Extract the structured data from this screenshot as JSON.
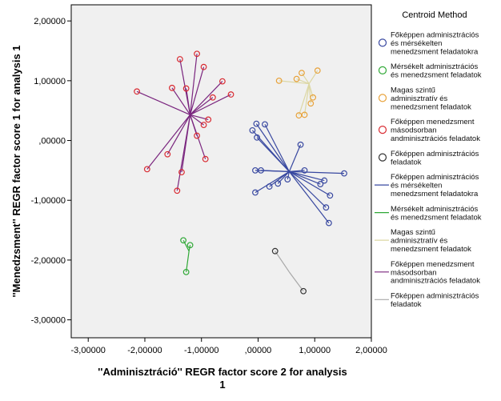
{
  "chart_data": {
    "type": "scatter",
    "title": "",
    "xlabel": "''Adminisztráció'' REGR factor score   2 for analysis 1",
    "xlabel_lines": [
      "''Adminisztráció'' REGR factor score   2 for analysis",
      "1"
    ],
    "ylabel": "''Menedzsment'' REGR factor score   1 for analysis 1",
    "xlim": [
      -3.3,
      2.0
    ],
    "ylim": [
      -3.3,
      2.27
    ],
    "x_ticks": [
      -3,
      -2,
      -1,
      0,
      1,
      2
    ],
    "x_tick_labels": [
      "-3,00000",
      "-2,00000",
      "-1,00000",
      ",00000",
      "1,00000",
      "2,00000"
    ],
    "y_ticks": [
      -3,
      -2,
      -1,
      0,
      1,
      2
    ],
    "y_tick_labels": [
      "-3,00000",
      "-2,00000",
      "-1,00000",
      ",00000",
      "1,00000",
      "2,00000"
    ],
    "legend": {
      "title": "Centroid Method",
      "position": "right",
      "items": [
        {
          "kind": "marker",
          "color": "#3848a0",
          "lines": [
            "Főképpen adminisztrációs",
            "és mérsékelten",
            "menedzsment feladatokra"
          ]
        },
        {
          "kind": "marker",
          "color": "#2fa836",
          "lines": [
            "Mérsékelt adminisztrációs",
            "és menedzsment feladatok"
          ]
        },
        {
          "kind": "marker",
          "color": "#e8a23a",
          "lines": [
            "Magas szintű",
            "adminisztratív és",
            "menedzsment feladatok"
          ]
        },
        {
          "kind": "marker",
          "color": "#d92b32",
          "lines": [
            "Főképpen menedzsment",
            "másodsorban",
            "andminisztrációs feladatok"
          ]
        },
        {
          "kind": "marker",
          "color": "#333333",
          "lines": [
            "Főképpen adminisztrációs",
            "feladatok"
          ]
        },
        {
          "kind": "line",
          "color": "#3848a0",
          "lines": [
            "Főképpen adminisztrációs",
            "és mérsékelten",
            "menedzsment feladatokra"
          ]
        },
        {
          "kind": "line",
          "color": "#2fa836",
          "lines": [
            "Mérsékelt adminisztrációs",
            "és menedzsment feladatok"
          ]
        },
        {
          "kind": "line",
          "color": "#dcd7a3",
          "lines": [
            "Magas szintű",
            "adminisztratív és",
            "menedzsment feladatok"
          ]
        },
        {
          "kind": "line",
          "color": "#7a257e",
          "lines": [
            "Főképpen menedzsment",
            "másodsorban",
            "andminisztrációs feladatok"
          ]
        },
        {
          "kind": "line",
          "color": "#a8a8a8",
          "lines": [
            "Főképpen adminisztrációs",
            "feladatok"
          ]
        }
      ]
    },
    "series": [
      {
        "name": "Főképpen adminisztrációs és mérsékelten menedzsment feladatokra",
        "marker_color": "#3848a0",
        "line_color": "#3848a0",
        "centroid": [
          0.55,
          -0.52
        ],
        "points": [
          [
            -0.1,
            0.17
          ],
          [
            -0.03,
            0.28
          ],
          [
            0.12,
            0.27
          ],
          [
            -0.02,
            0.05
          ],
          [
            0.75,
            -0.07
          ],
          [
            -0.05,
            -0.5
          ],
          [
            0.05,
            -0.5
          ],
          [
            -0.05,
            -0.87
          ],
          [
            0.2,
            -0.77
          ],
          [
            0.35,
            -0.72
          ],
          [
            0.52,
            -0.65
          ],
          [
            0.82,
            -0.5
          ],
          [
            1.17,
            -0.67
          ],
          [
            1.52,
            -0.55
          ],
          [
            1.1,
            -0.73
          ],
          [
            1.27,
            -0.92
          ],
          [
            1.2,
            -1.12
          ],
          [
            1.25,
            -1.38
          ]
        ]
      },
      {
        "name": "Mérsékelt adminisztrációs és menedzsment feladatok",
        "marker_color": "#2fa836",
        "line_color": "#2fa836",
        "centroid": [
          -1.22,
          -1.85
        ],
        "points": [
          [
            -1.32,
            -1.67
          ],
          [
            -1.2,
            -1.75
          ],
          [
            -1.27,
            -2.2
          ]
        ]
      },
      {
        "name": "Magas szintű adminisztratív és menedzsment feladatok",
        "marker_color": "#e8a23a",
        "line_color": "#dcd7a3",
        "centroid": [
          0.9,
          0.95
        ],
        "points": [
          [
            0.37,
            1.0
          ],
          [
            0.68,
            1.03
          ],
          [
            0.77,
            1.13
          ],
          [
            1.05,
            1.17
          ],
          [
            0.97,
            0.72
          ],
          [
            0.93,
            0.62
          ],
          [
            0.72,
            0.42
          ],
          [
            0.82,
            0.43
          ]
        ]
      },
      {
        "name": "Főképpen menedzsment másodsorban andminisztrációs feladatok",
        "marker_color": "#d92b32",
        "line_color": "#7a257e",
        "centroid": [
          -1.2,
          0.43
        ],
        "points": [
          [
            -1.38,
            1.36
          ],
          [
            -1.08,
            1.45
          ],
          [
            -0.96,
            1.23
          ],
          [
            -2.14,
            0.82
          ],
          [
            -1.52,
            0.88
          ],
          [
            -1.27,
            0.87
          ],
          [
            -0.63,
            0.99
          ],
          [
            -0.8,
            0.72
          ],
          [
            -0.48,
            0.77
          ],
          [
            -0.88,
            0.35
          ],
          [
            -0.96,
            0.26
          ],
          [
            -1.08,
            0.08
          ],
          [
            -1.6,
            -0.23
          ],
          [
            -1.96,
            -0.48
          ],
          [
            -1.35,
            -0.53
          ],
          [
            -0.93,
            -0.31
          ],
          [
            -1.43,
            -0.84
          ]
        ]
      },
      {
        "name": "Főképpen adminisztrációs feladatok",
        "marker_color": "#333333",
        "line_color": "#a8a8a8",
        "centroid": [
          0.55,
          -2.2
        ],
        "points": [
          [
            0.3,
            -1.85
          ],
          [
            0.8,
            -2.52
          ]
        ]
      }
    ]
  }
}
